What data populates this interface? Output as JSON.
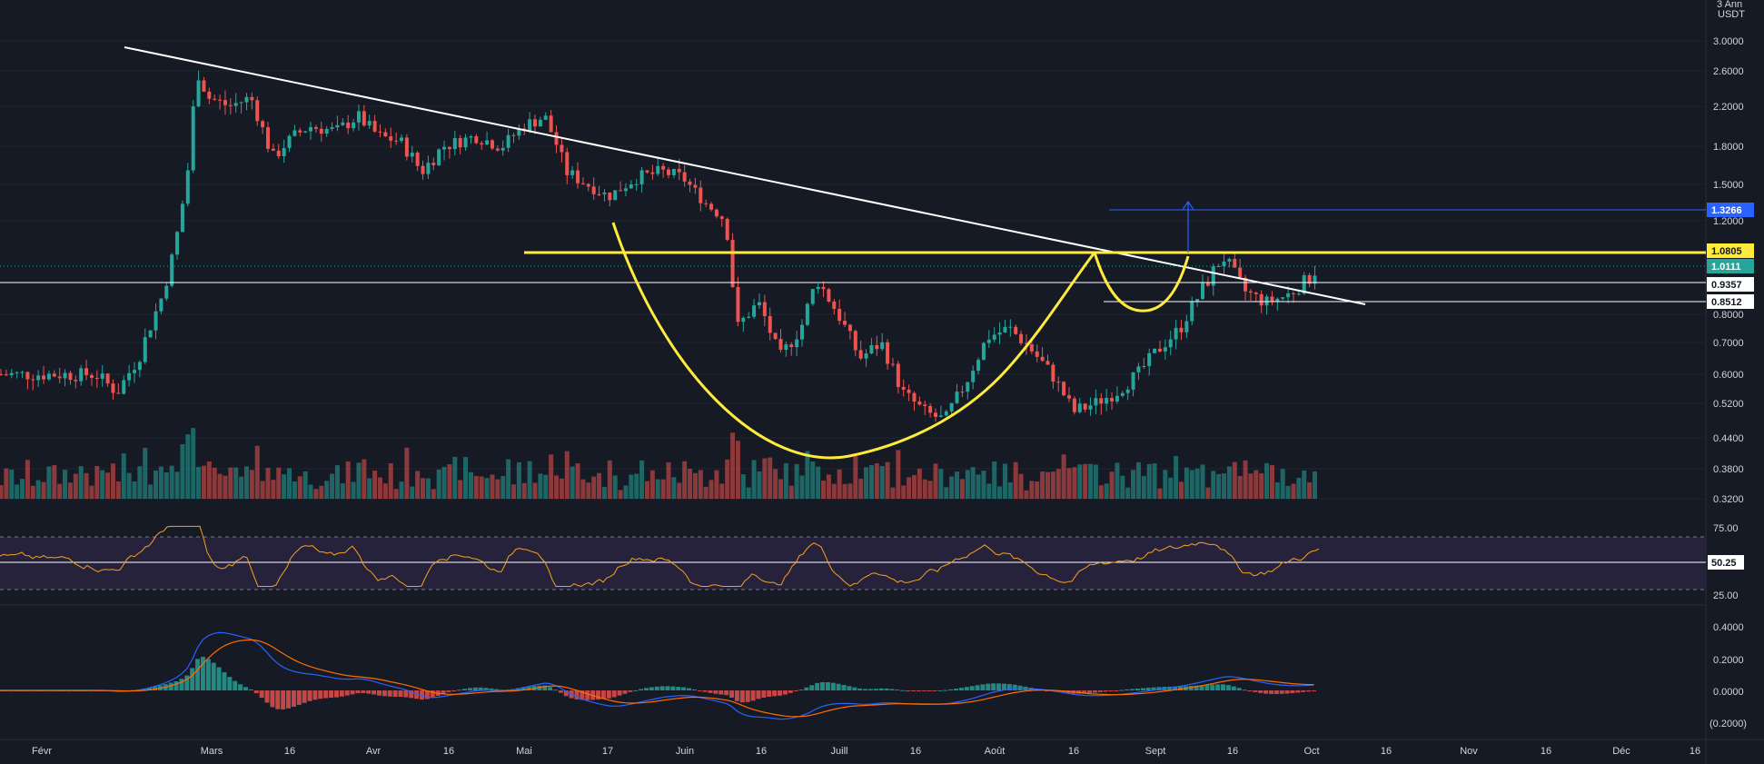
{
  "app": {
    "title": "Chart"
  },
  "header": {
    "scale_count": "3 Ann",
    "quote_currency": "USDT"
  },
  "colors": {
    "background": "#161a25",
    "grid": "#1f2430",
    "up": "#26a69a",
    "down": "#ef5350",
    "trendline": "#ffffff",
    "resistance": "#ffeb3b",
    "target_line": "#2962ff",
    "rsi": "#f7a21b",
    "rsi_band": "#2a2442",
    "macd": "#2962ff",
    "signal": "#ff6d00"
  },
  "price_axis": {
    "ticks": [
      "3.0000",
      "2.6000",
      "2.2000",
      "1.8000",
      "1.5000",
      "1.2000",
      "0.8000",
      "0.7000",
      "0.6000",
      "0.5200",
      "0.4400",
      "0.3800",
      "0.3200"
    ]
  },
  "price_tags": [
    {
      "label": "1.3266",
      "role": "target",
      "bg": "#2962ff",
      "fg": "#ffffff"
    },
    {
      "label": "1.0805",
      "role": "resistance",
      "bg": "#ffeb3b",
      "fg": "#131722"
    },
    {
      "label": "1.0111",
      "role": "last_price",
      "bg": "#26a69a",
      "fg": "#ffffff"
    },
    {
      "label": "0.9357",
      "role": "support_upper",
      "bg": "#ffffff",
      "fg": "#131722"
    },
    {
      "label": "0.8512",
      "role": "support_lower",
      "bg": "#ffffff",
      "fg": "#131722"
    }
  ],
  "rsi": {
    "ticks": [
      "75.00",
      "25.00"
    ],
    "current": "50.25"
  },
  "macd": {
    "ticks": [
      "0.4000",
      "0.2000",
      "0.0000",
      "(0.2000)"
    ]
  },
  "time_axis": {
    "labels": [
      "Févr",
      "Mars",
      "16",
      "Avr",
      "16",
      "Mai",
      "17",
      "Juin",
      "16",
      "Juill",
      "16",
      "Août",
      "16",
      "Sept",
      "16",
      "Oct",
      "16",
      "Nov",
      "16",
      "Déc",
      "16"
    ]
  },
  "chart_data": {
    "type": "candlestick",
    "price_ticks": [
      3.0,
      2.6,
      2.2,
      1.8,
      1.5,
      1.2,
      0.8,
      0.7,
      0.6,
      0.52,
      0.44,
      0.38,
      0.32
    ],
    "annotations": {
      "trendline": [
        {
          "date": "02-08",
          "price": 2.9
        },
        {
          "date": "10-11",
          "price": 0.84
        }
      ],
      "resistance": 1.0805,
      "target": 1.3266,
      "support_upper": 0.9357,
      "support_lower": 0.8512,
      "last": 1.0111,
      "cup_bottom": {
        "date": "06-28",
        "price": 0.385
      },
      "handle_bottom": {
        "date": "08-26",
        "price": 0.8
      }
    },
    "rsi": {
      "upper": 75,
      "lower": 25,
      "current": 50.25
    },
    "series": [
      {
        "name": "price",
        "kind": "close",
        "points": [
          [
            "01-20",
            0.6
          ],
          [
            "01-24",
            0.55
          ],
          [
            "01-28",
            0.65
          ],
          [
            "02-01",
            0.85
          ],
          [
            "02-04",
            1.1
          ],
          [
            "02-06",
            1.5
          ],
          [
            "02-08",
            2.6
          ],
          [
            "02-10",
            2.3
          ],
          [
            "02-14",
            2.2
          ],
          [
            "02-18",
            2.3
          ],
          [
            "02-22",
            1.7
          ],
          [
            "02-26",
            1.9
          ],
          [
            "03-01",
            2.0
          ],
          [
            "03-06",
            1.95
          ],
          [
            "03-10",
            2.1
          ],
          [
            "03-14",
            1.9
          ],
          [
            "03-18",
            1.85
          ],
          [
            "03-22",
            1.6
          ],
          [
            "03-26",
            1.8
          ],
          [
            "04-01",
            1.9
          ],
          [
            "04-06",
            1.8
          ],
          [
            "04-10",
            2.0
          ],
          [
            "04-14",
            2.1
          ],
          [
            "04-18",
            1.6
          ],
          [
            "04-22",
            1.5
          ],
          [
            "04-26",
            1.4
          ],
          [
            "05-01",
            1.55
          ],
          [
            "05-06",
            1.6
          ],
          [
            "05-10",
            1.55
          ],
          [
            "05-14",
            1.35
          ],
          [
            "05-18",
            1.2
          ],
          [
            "05-20",
            0.75
          ],
          [
            "05-24",
            0.85
          ],
          [
            "05-28",
            0.65
          ],
          [
            "06-01",
            0.75
          ],
          [
            "06-04",
            0.95
          ],
          [
            "06-08",
            0.8
          ],
          [
            "06-12",
            0.65
          ],
          [
            "06-16",
            0.7
          ],
          [
            "06-20",
            0.55
          ],
          [
            "06-24",
            0.5
          ],
          [
            "06-28",
            0.48
          ],
          [
            "07-02",
            0.58
          ],
          [
            "07-06",
            0.72
          ],
          [
            "07-10",
            0.75
          ],
          [
            "07-14",
            0.68
          ],
          [
            "07-18",
            0.6
          ],
          [
            "07-22",
            0.5
          ],
          [
            "07-26",
            0.52
          ],
          [
            "07-30",
            0.55
          ],
          [
            "08-03",
            0.6
          ],
          [
            "08-07",
            0.68
          ],
          [
            "08-11",
            0.75
          ],
          [
            "08-15",
            0.9
          ],
          [
            "08-19",
            1.05
          ],
          [
            "08-23",
            0.9
          ],
          [
            "08-27",
            0.85
          ],
          [
            "08-31",
            0.88
          ],
          [
            "09-04",
            0.95
          ],
          [
            "09-06",
            1.0111
          ]
        ]
      }
    ]
  }
}
